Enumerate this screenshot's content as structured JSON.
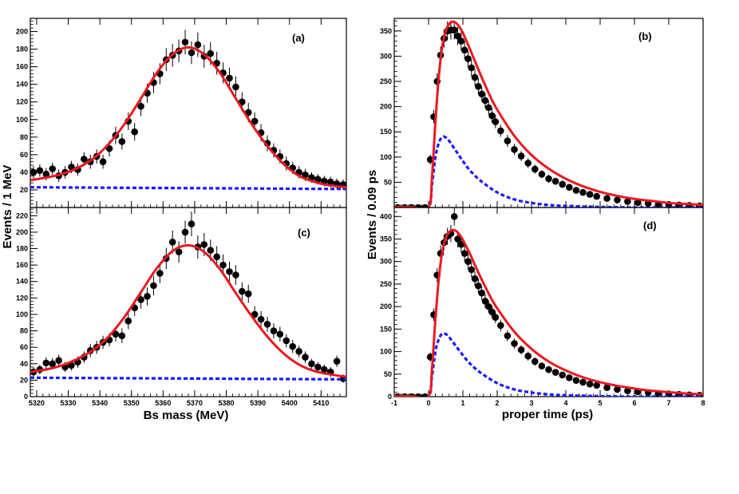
{
  "figure": {
    "left_ylabel": "Events / 1 MeV",
    "right_ylabel": "Events / 0.09 ps",
    "left_xlabel": "Bs mass (MeV)",
    "right_xlabel": "proper time (ps)",
    "colors": {
      "data": "#000000",
      "fit": "#e8191f",
      "background": "#1a1aff"
    }
  },
  "chart_data": [
    {
      "panel": "(a)",
      "type": "scatter",
      "title": "",
      "xlabel": "Bs mass (MeV)",
      "ylabel": "Events / 1 MeV",
      "xlim": [
        5318,
        5418
      ],
      "ylim": [
        0,
        215
      ],
      "xticks": [
        5320,
        5330,
        5340,
        5350,
        5360,
        5370,
        5380,
        5390,
        5400,
        5410
      ],
      "xtick_labels": [],
      "yticks": [
        20,
        40,
        60,
        80,
        100,
        120,
        140,
        160,
        180,
        200
      ],
      "ytick_labels": [
        "20",
        "40",
        "60",
        "80",
        "100",
        "120",
        "140",
        "160",
        "180",
        "200"
      ],
      "series": [
        {
          "name": "data",
          "x": [
            5319,
            5321,
            5323,
            5325,
            5327,
            5329,
            5331,
            5333,
            5335,
            5337,
            5339,
            5341,
            5343,
            5345,
            5347,
            5349,
            5351,
            5353,
            5355,
            5357,
            5359,
            5361,
            5363,
            5365,
            5367,
            5369,
            5371,
            5373,
            5375,
            5377,
            5379,
            5381,
            5383,
            5385,
            5387,
            5389,
            5391,
            5393,
            5395,
            5397,
            5399,
            5401,
            5403,
            5405,
            5407,
            5409,
            5411,
            5413,
            5415,
            5417
          ],
          "y": [
            40,
            42,
            38,
            44,
            36,
            40,
            46,
            43,
            55,
            52,
            58,
            52,
            67,
            82,
            75,
            98,
            86,
            115,
            130,
            142,
            152,
            168,
            173,
            178,
            188,
            176,
            185,
            172,
            175,
            164,
            153,
            147,
            137,
            120,
            108,
            98,
            85,
            73,
            65,
            58,
            50,
            45,
            40,
            37,
            34,
            32,
            30,
            29,
            27,
            26
          ],
          "err": [
            7,
            7,
            7,
            7,
            7,
            7,
            7,
            7,
            8,
            8,
            8,
            8,
            9,
            10,
            9,
            10,
            10,
            11,
            11,
            12,
            12,
            13,
            13,
            13,
            14,
            13,
            14,
            13,
            13,
            13,
            12,
            12,
            12,
            11,
            11,
            10,
            10,
            9,
            8,
            8,
            8,
            7,
            7,
            7,
            6,
            6,
            6,
            6,
            6,
            6
          ]
        },
        {
          "name": "fit",
          "x": [
            5318,
            5323,
            5328,
            5333,
            5338,
            5343,
            5348,
            5353,
            5358,
            5363,
            5368,
            5373,
            5378,
            5383,
            5388,
            5393,
            5398,
            5403,
            5408,
            5413,
            5418
          ],
          "y": [
            31,
            34,
            38,
            45,
            56,
            73,
            96,
            124,
            153,
            174,
            182,
            174,
            153,
            124,
            95,
            70,
            50,
            36,
            29,
            25,
            23
          ]
        },
        {
          "name": "background",
          "x": [
            5318,
            5418
          ],
          "y": [
            23,
            21
          ]
        }
      ]
    },
    {
      "panel": "(b)",
      "type": "scatter",
      "title": "",
      "xlabel": "proper time (ps)",
      "ylabel": "Events / 0.09 ps",
      "xlim": [
        -1,
        8
      ],
      "ylim": [
        0,
        375
      ],
      "xticks": [
        -1,
        0,
        1,
        2,
        3,
        4,
        5,
        6,
        7,
        8
      ],
      "xtick_labels": [],
      "yticks": [
        50,
        100,
        150,
        200,
        250,
        300,
        350
      ],
      "ytick_labels": [
        "50",
        "100",
        "150",
        "200",
        "250",
        "300",
        "350"
      ],
      "series": [
        {
          "name": "data",
          "x": [
            -0.9,
            -0.7,
            -0.5,
            -0.3,
            -0.1,
            0.05,
            0.15,
            0.25,
            0.35,
            0.45,
            0.55,
            0.65,
            0.75,
            0.85,
            0.95,
            1.05,
            1.15,
            1.25,
            1.35,
            1.45,
            1.55,
            1.65,
            1.75,
            1.85,
            1.95,
            2.1,
            2.3,
            2.5,
            2.7,
            2.9,
            3.1,
            3.3,
            3.5,
            3.7,
            3.9,
            4.1,
            4.3,
            4.5,
            4.7,
            4.9,
            5.2,
            5.5,
            5.8,
            6.1,
            6.4,
            6.7,
            7.0,
            7.3,
            7.6,
            7.9
          ],
          "y": [
            0,
            0,
            0,
            0,
            0,
            95,
            180,
            250,
            302,
            335,
            350,
            352,
            352,
            340,
            330,
            312,
            295,
            277,
            258,
            240,
            225,
            212,
            198,
            182,
            170,
            152,
            132,
            115,
            102,
            88,
            76,
            66,
            57,
            52,
            46,
            40,
            34,
            30,
            26,
            22,
            18,
            15,
            12,
            10,
            8,
            7,
            6,
            5,
            4,
            3
          ],
          "err": [
            2,
            2,
            2,
            2,
            2,
            10,
            13,
            16,
            17,
            18,
            19,
            19,
            19,
            18,
            18,
            18,
            17,
            17,
            16,
            16,
            15,
            15,
            14,
            14,
            13,
            12,
            12,
            11,
            10,
            10,
            9,
            8,
            8,
            7,
            7,
            6,
            6,
            6,
            5,
            5,
            4,
            4,
            4,
            3,
            3,
            3,
            3,
            2,
            2,
            2
          ]
        },
        {
          "name": "fit",
          "x": [
            -1,
            -0.5,
            0,
            0.1,
            0.2,
            0.3,
            0.4,
            0.5,
            0.6,
            0.7,
            0.8,
            0.9,
            1.0,
            1.2,
            1.4,
            1.6,
            1.8,
            2.0,
            2.5,
            3.0,
            3.5,
            4.0,
            4.5,
            5.0,
            5.5,
            6.0,
            6.5,
            7.0,
            7.5,
            8.0
          ],
          "y": [
            1,
            1,
            1,
            60,
            170,
            260,
            320,
            350,
            364,
            368,
            366,
            358,
            346,
            315,
            282,
            250,
            220,
            194,
            142,
            104,
            77,
            57,
            42,
            31,
            23,
            17,
            13,
            9,
            7,
            5
          ]
        },
        {
          "name": "background",
          "x": [
            -1,
            -0.5,
            0,
            0.1,
            0.2,
            0.3,
            0.4,
            0.5,
            0.6,
            0.8,
            1.0,
            1.2,
            1.5,
            2.0,
            2.5,
            3.0,
            3.5,
            4.0,
            5.0,
            6.0,
            7.0,
            8.0
          ],
          "y": [
            0,
            0,
            0,
            45,
            100,
            128,
            140,
            139,
            132,
            112,
            92,
            74,
            54,
            30,
            16,
            9,
            5,
            3,
            1,
            0,
            0,
            0
          ]
        }
      ]
    },
    {
      "panel": "(c)",
      "type": "scatter",
      "title": "",
      "xlabel": "Bs mass (MeV)",
      "ylabel": "Events / 1 MeV",
      "xlim": [
        5318,
        5418
      ],
      "ylim": [
        0,
        230
      ],
      "xticks": [
        5320,
        5330,
        5340,
        5350,
        5360,
        5370,
        5380,
        5390,
        5400,
        5410
      ],
      "xtick_labels": [
        "5320",
        "5330",
        "5340",
        "5350",
        "5360",
        "5370",
        "5380",
        "5390",
        "5400",
        "5410"
      ],
      "yticks": [
        0,
        20,
        40,
        60,
        80,
        100,
        120,
        140,
        160,
        180,
        200,
        220
      ],
      "ytick_labels": [
        "0",
        "20",
        "40",
        "60",
        "80",
        "100",
        "120",
        "140",
        "160",
        "180",
        "200",
        "220"
      ],
      "series": [
        {
          "name": "data",
          "x": [
            5319,
            5321,
            5323,
            5325,
            5327,
            5329,
            5331,
            5333,
            5335,
            5337,
            5339,
            5341,
            5343,
            5345,
            5347,
            5349,
            5351,
            5353,
            5355,
            5357,
            5359,
            5361,
            5363,
            5365,
            5367,
            5369,
            5371,
            5373,
            5375,
            5377,
            5379,
            5381,
            5383,
            5385,
            5387,
            5389,
            5391,
            5393,
            5395,
            5397,
            5399,
            5401,
            5403,
            5405,
            5407,
            5409,
            5411,
            5413,
            5415,
            5417
          ],
          "y": [
            30,
            33,
            41,
            40,
            44,
            36,
            38,
            42,
            48,
            56,
            60,
            66,
            69,
            76,
            74,
            92,
            108,
            118,
            122,
            135,
            150,
            168,
            188,
            176,
            200,
            210,
            182,
            185,
            178,
            170,
            160,
            152,
            148,
            128,
            125,
            100,
            94,
            88,
            80,
            76,
            68,
            61,
            55,
            48,
            40,
            36,
            33,
            30,
            43,
            22
          ],
          "err": [
            6,
            6,
            7,
            7,
            7,
            6,
            6,
            7,
            7,
            8,
            8,
            8,
            8,
            9,
            9,
            10,
            10,
            11,
            11,
            12,
            12,
            13,
            14,
            13,
            14,
            15,
            14,
            14,
            13,
            13,
            13,
            12,
            12,
            11,
            11,
            10,
            10,
            9,
            9,
            9,
            8,
            8,
            7,
            7,
            6,
            6,
            6,
            6,
            7,
            5
          ]
        },
        {
          "name": "fit",
          "x": [
            5318,
            5323,
            5328,
            5333,
            5338,
            5343,
            5348,
            5353,
            5358,
            5363,
            5368,
            5373,
            5378,
            5383,
            5388,
            5393,
            5398,
            5403,
            5408,
            5413,
            5418
          ],
          "y": [
            30,
            33,
            38,
            46,
            57,
            74,
            98,
            127,
            156,
            177,
            184,
            176,
            155,
            126,
            98,
            73,
            53,
            39,
            31,
            27,
            24
          ]
        },
        {
          "name": "background",
          "x": [
            5318,
            5418
          ],
          "y": [
            23,
            21
          ]
        }
      ]
    },
    {
      "panel": "(d)",
      "type": "scatter",
      "title": "",
      "xlabel": "proper time (ps)",
      "ylabel": "Events / 0.09 ps",
      "xlim": [
        -1,
        8
      ],
      "ylim": [
        0,
        420
      ],
      "xticks": [
        -1,
        0,
        1,
        2,
        3,
        4,
        5,
        6,
        7,
        8
      ],
      "xtick_labels": [
        "-1",
        "0",
        "1",
        "2",
        "3",
        "4",
        "5",
        "6",
        "7",
        "8"
      ],
      "yticks": [
        0,
        50,
        100,
        150,
        200,
        250,
        300,
        350,
        400
      ],
      "ytick_labels": [
        "0",
        "50",
        "100",
        "150",
        "200",
        "250",
        "300",
        "350",
        "400"
      ],
      "series": [
        {
          "name": "data",
          "x": [
            -0.9,
            -0.7,
            -0.5,
            -0.3,
            -0.1,
            0.05,
            0.15,
            0.25,
            0.35,
            0.45,
            0.55,
            0.65,
            0.75,
            0.85,
            0.95,
            1.05,
            1.15,
            1.25,
            1.35,
            1.45,
            1.55,
            1.65,
            1.75,
            1.85,
            1.95,
            2.1,
            2.3,
            2.5,
            2.7,
            2.9,
            3.1,
            3.3,
            3.5,
            3.7,
            3.9,
            4.1,
            4.3,
            4.5,
            4.7,
            4.9,
            5.2,
            5.5,
            5.8,
            6.1,
            6.4,
            6.7,
            7.0,
            7.3,
            7.6,
            7.9
          ],
          "y": [
            0,
            0,
            0,
            0,
            0,
            88,
            182,
            270,
            318,
            342,
            356,
            362,
            400,
            350,
            338,
            318,
            300,
            282,
            262,
            246,
            230,
            212,
            200,
            188,
            176,
            158,
            135,
            118,
            104,
            90,
            78,
            68,
            60,
            54,
            48,
            42,
            36,
            32,
            28,
            25,
            20,
            16,
            13,
            11,
            9,
            7,
            6,
            5,
            4,
            3
          ],
          "err": [
            2,
            2,
            2,
            2,
            2,
            10,
            14,
            16,
            18,
            18,
            19,
            19,
            20,
            19,
            18,
            18,
            17,
            17,
            16,
            16,
            15,
            15,
            14,
            14,
            13,
            13,
            12,
            11,
            10,
            10,
            9,
            8,
            8,
            7,
            7,
            7,
            6,
            6,
            5,
            5,
            4,
            4,
            4,
            3,
            3,
            3,
            3,
            2,
            2,
            2
          ]
        },
        {
          "name": "fit",
          "x": [
            -1,
            -0.5,
            0,
            0.1,
            0.2,
            0.3,
            0.4,
            0.5,
            0.6,
            0.7,
            0.8,
            0.9,
            1.0,
            1.2,
            1.4,
            1.6,
            1.8,
            2.0,
            2.5,
            3.0,
            3.5,
            4.0,
            4.5,
            5.0,
            5.5,
            6.0,
            6.5,
            7.0,
            7.5,
            8.0
          ],
          "y": [
            1,
            1,
            1,
            62,
            172,
            262,
            322,
            352,
            366,
            370,
            368,
            360,
            348,
            318,
            284,
            252,
            222,
            196,
            144,
            106,
            78,
            58,
            43,
            32,
            24,
            18,
            13,
            10,
            7,
            5
          ]
        },
        {
          "name": "background",
          "x": [
            -1,
            -0.5,
            0,
            0.1,
            0.2,
            0.3,
            0.4,
            0.5,
            0.6,
            0.8,
            1.0,
            1.2,
            1.5,
            2.0,
            2.5,
            3.0,
            3.5,
            4.0,
            5.0,
            6.0,
            7.0,
            8.0
          ],
          "y": [
            0,
            0,
            0,
            45,
            100,
            128,
            140,
            139,
            132,
            112,
            92,
            74,
            54,
            30,
            16,
            9,
            5,
            3,
            1,
            0,
            0,
            0
          ]
        }
      ]
    }
  ]
}
